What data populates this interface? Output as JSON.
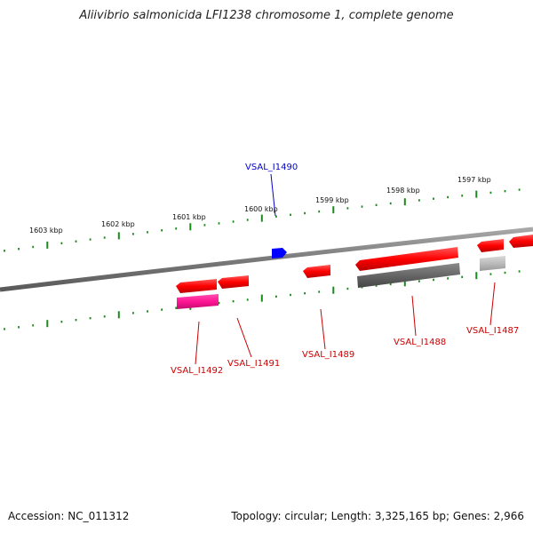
{
  "title": "Aliivibrio salmonicida LFI1238 chromosome 1, complete genome",
  "footer": {
    "accession": "Accession: NC_011312",
    "summary": "Topology: circular; Length: 3,325,165 bp; Genes: 2,966"
  },
  "kbp_labels": [
    "1603 kbp",
    "1602 kbp",
    "1601 kbp",
    "1600 kbp",
    "1599 kbp",
    "1598 kbp",
    "1597 kbp"
  ],
  "genes": [
    {
      "name": "VSAL_I1490",
      "strand": "forward",
      "color": "#0000ff"
    },
    {
      "name": "VSAL_I1492",
      "strand": "reverse",
      "color": "#ff0000"
    },
    {
      "name": "VSAL_I1491",
      "strand": "reverse",
      "color": "#ff0000"
    },
    {
      "name": "VSAL_I1489",
      "strand": "reverse",
      "color": "#ff0000"
    },
    {
      "name": "VSAL_I1488",
      "strand": "reverse",
      "color": "#ff0000"
    },
    {
      "name": "VSAL_I1487",
      "strand": "reverse",
      "color": "#ff0000"
    }
  ],
  "colors": {
    "gene_red": "#ff0000",
    "gene_blue": "#0000ff",
    "gene_pink": "#ff1493",
    "feature_gray": "#666666",
    "feature_lightgray": "#bbbbbb",
    "backbone": "#808080",
    "tick_green": "#1a8a1a"
  }
}
